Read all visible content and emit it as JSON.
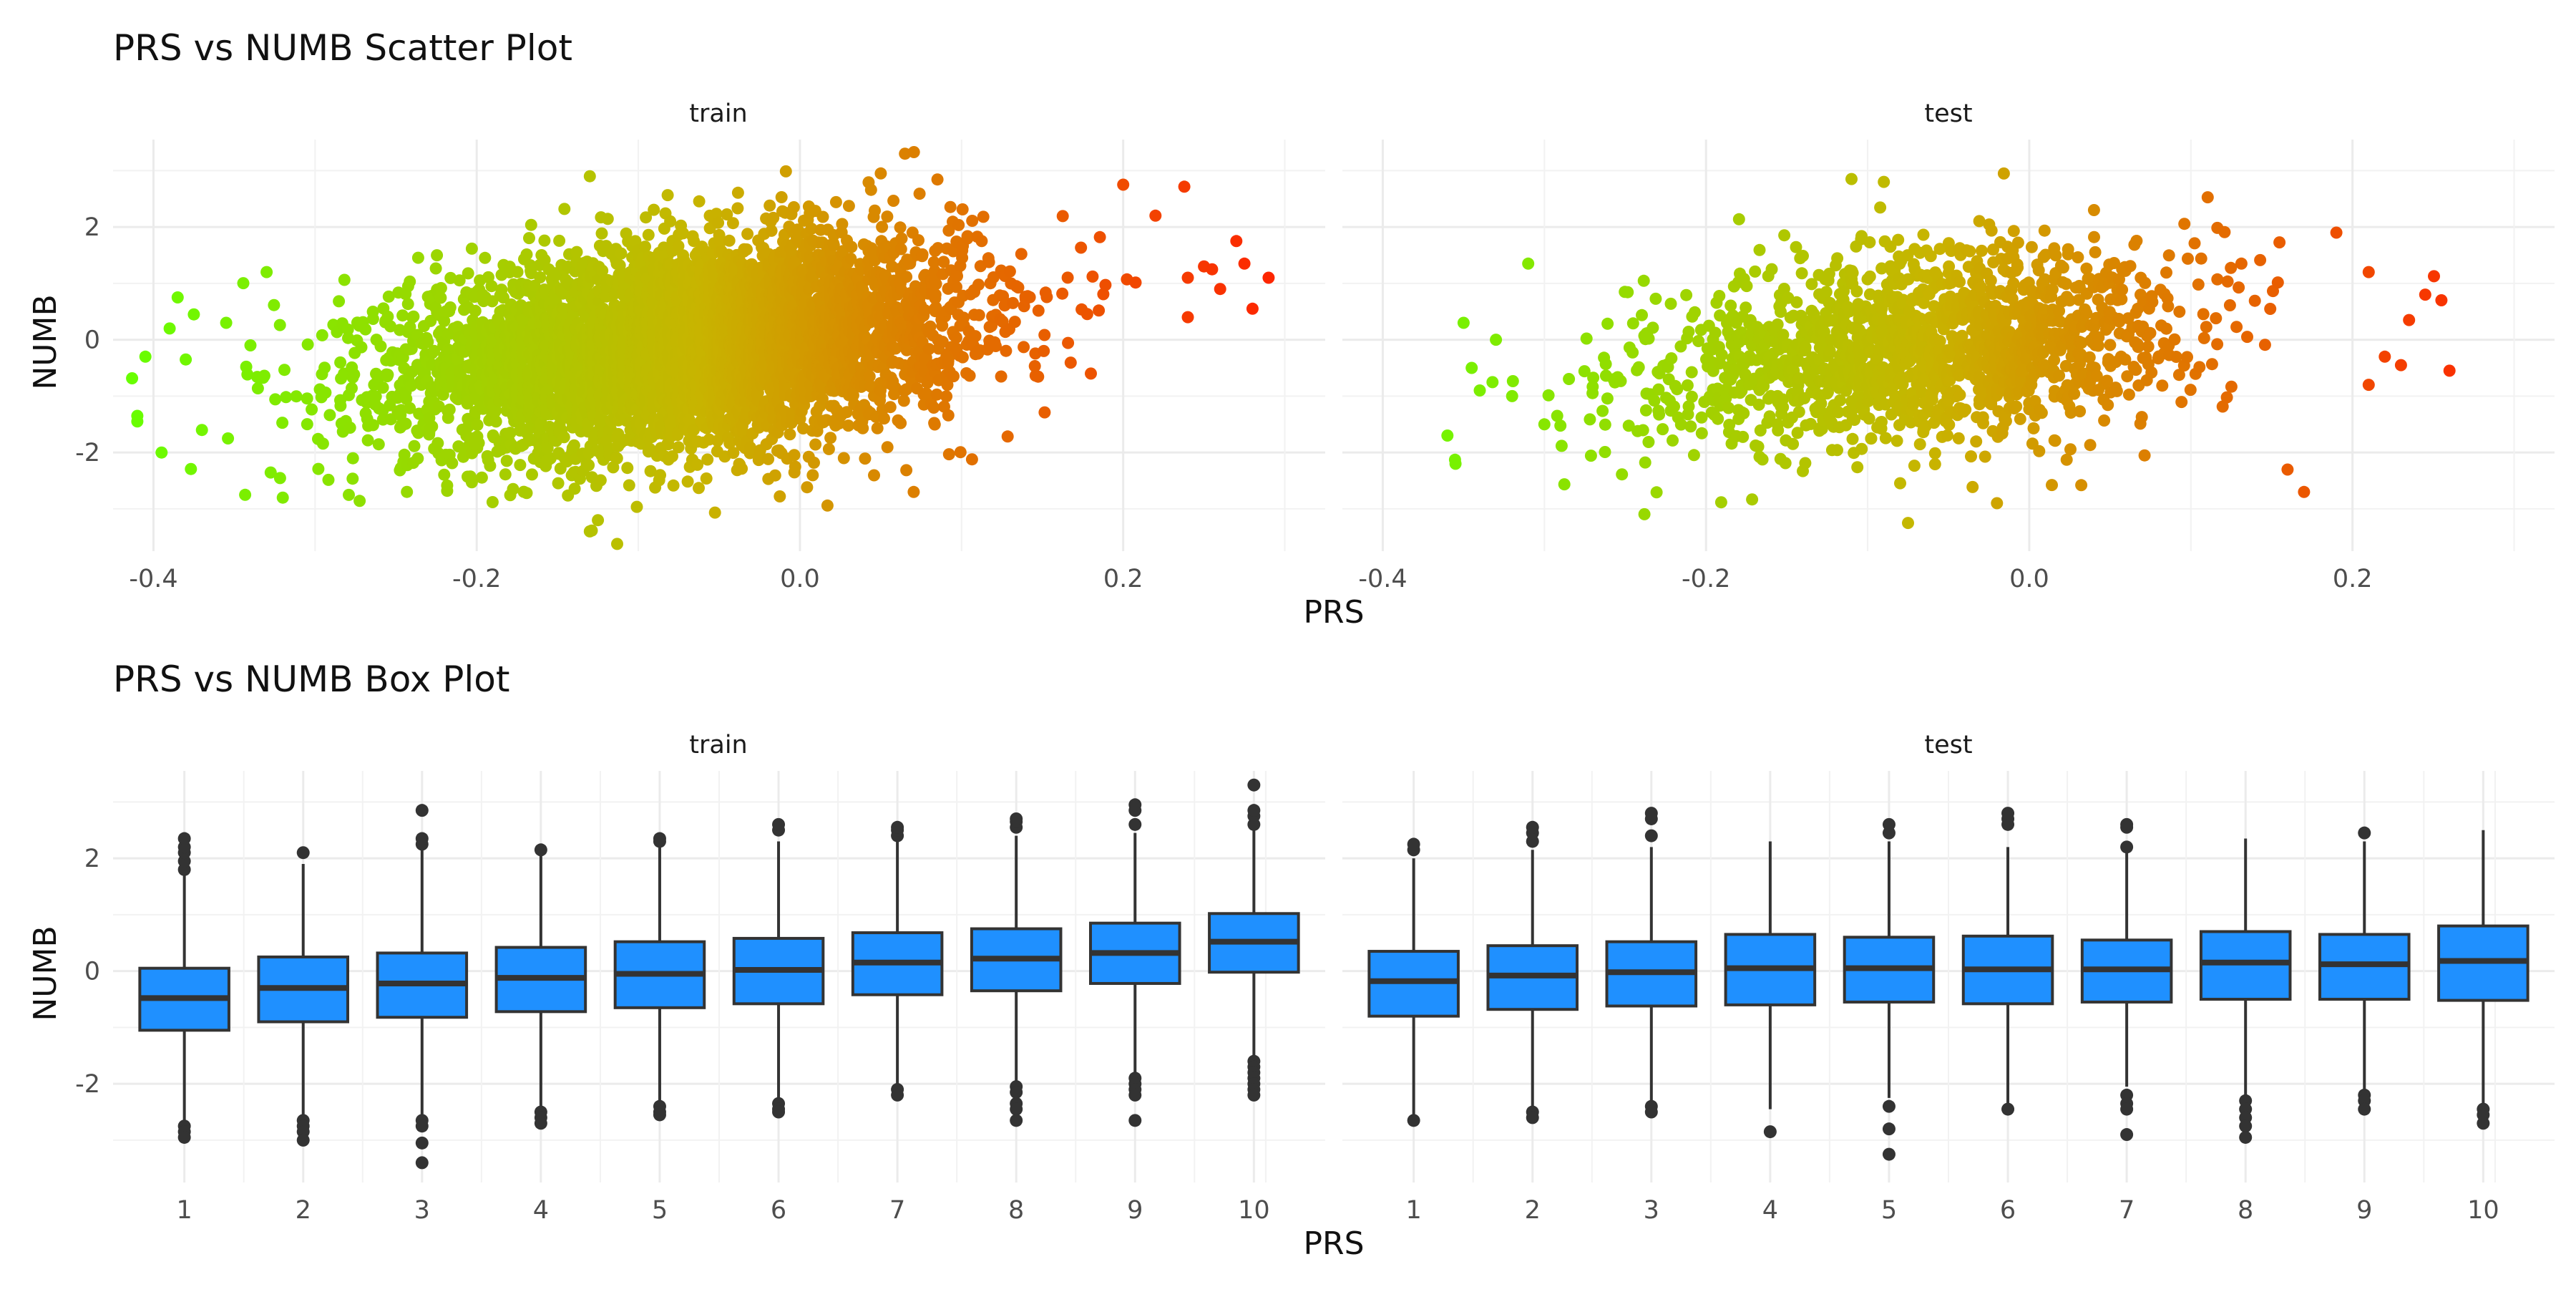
{
  "chart_data": [
    {
      "type": "scatter",
      "title": "PRS vs NUMB Scatter Plot",
      "xlabel": "PRS",
      "ylabel": "NUMB",
      "xlim": [
        -0.425,
        0.325
      ],
      "ylim": [
        -3.75,
        3.55
      ],
      "x_ticks": [
        -0.4,
        -0.2,
        0.0,
        0.2
      ],
      "y_ticks": [
        -2,
        0,
        2
      ],
      "x_tick_labels": [
        "-0.4",
        "-0.2",
        "0.0",
        "0.2"
      ],
      "y_tick_labels": [
        "-2",
        "0",
        "2"
      ],
      "grid": true,
      "legend": "none",
      "color_scale": {
        "low": "#66ff00",
        "mid": "#c8b400",
        "high": "#ff2200"
      },
      "panels": [
        {
          "name": "train",
          "x_center": -0.07,
          "x_sd": 0.085,
          "y_center": -0.1,
          "y_sd": 1.0,
          "point_count": 5200,
          "points": [
            [
              -0.41,
              -1.35
            ],
            [
              -0.41,
              -1.45
            ],
            [
              -0.405,
              -0.3
            ],
            [
              -0.395,
              -2.0
            ],
            [
              -0.39,
              0.2
            ],
            [
              -0.385,
              0.75
            ],
            [
              -0.38,
              -0.35
            ],
            [
              -0.375,
              0.45
            ],
            [
              -0.37,
              -1.6
            ],
            [
              -0.355,
              0.3
            ],
            [
              -0.34,
              -0.1
            ],
            [
              -0.33,
              1.2
            ],
            [
              -0.32,
              -2.8
            ],
            [
              0.22,
              2.2
            ],
            [
              0.24,
              1.1
            ],
            [
              0.25,
              1.3
            ],
            [
              0.255,
              1.25
            ],
            [
              0.26,
              0.9
            ],
            [
              0.27,
              1.75
            ],
            [
              0.275,
              1.35
            ],
            [
              0.28,
              0.55
            ],
            [
              0.29,
              1.1
            ],
            [
              0.24,
              0.4
            ],
            [
              0.2,
              2.75
            ],
            [
              0.18,
              -0.6
            ],
            [
              -0.13,
              -3.4
            ],
            [
              -0.125,
              -3.2
            ],
            [
              0.065,
              3.3
            ],
            [
              -0.13,
              2.9
            ],
            [
              0.05,
              2.95
            ]
          ]
        },
        {
          "name": "test",
          "x_center": -0.07,
          "x_sd": 0.085,
          "y_center": -0.15,
          "y_sd": 0.95,
          "point_count": 1600,
          "points": [
            [
              -0.36,
              -1.7
            ],
            [
              -0.355,
              -2.2
            ],
            [
              -0.35,
              0.3
            ],
            [
              -0.345,
              -0.5
            ],
            [
              -0.34,
              -0.9
            ],
            [
              -0.33,
              0.0
            ],
            [
              -0.32,
              -1.0
            ],
            [
              -0.31,
              1.35
            ],
            [
              -0.3,
              -1.5
            ],
            [
              0.21,
              1.2
            ],
            [
              0.22,
              -0.3
            ],
            [
              0.23,
              -0.45
            ],
            [
              0.235,
              0.35
            ],
            [
              0.245,
              0.8
            ],
            [
              0.255,
              0.7
            ],
            [
              0.26,
              -0.55
            ],
            [
              0.21,
              -0.8
            ],
            [
              0.17,
              -2.7
            ],
            [
              0.19,
              1.9
            ],
            [
              -0.075,
              -3.25
            ],
            [
              -0.11,
              2.85
            ],
            [
              -0.09,
              2.8
            ],
            [
              -0.02,
              -2.9
            ]
          ]
        }
      ]
    },
    {
      "type": "box",
      "title": "PRS vs NUMB Box Plot",
      "xlabel": "PRS",
      "ylabel": "NUMB",
      "categories": [
        "1",
        "2",
        "3",
        "4",
        "5",
        "6",
        "7",
        "8",
        "9",
        "10"
      ],
      "ylim": [
        -3.75,
        3.55
      ],
      "y_ticks": [
        -2,
        0,
        2
      ],
      "y_tick_labels": [
        "-2",
        "0",
        "2"
      ],
      "box_color": "#1f90ff",
      "outlier_color": "#333333",
      "grid": true,
      "panels": [
        {
          "name": "train",
          "series": [
            {
              "category": "1",
              "whisker_low": -2.7,
              "q1": -1.05,
              "median": -0.48,
              "q3": 0.05,
              "whisker_high": 1.7,
              "outliers": [
                -2.75,
                -2.85,
                -2.95,
                1.8,
                1.95,
                2.1,
                2.2,
                2.35
              ]
            },
            {
              "category": "2",
              "whisker_low": -2.55,
              "q1": -0.9,
              "median": -0.3,
              "q3": 0.25,
              "whisker_high": 1.9,
              "outliers": [
                -2.65,
                -2.75,
                -2.85,
                -3.0,
                2.1
              ]
            },
            {
              "category": "3",
              "whisker_low": -2.55,
              "q1": -0.82,
              "median": -0.22,
              "q3": 0.32,
              "whisker_high": 2.15,
              "outliers": [
                -2.65,
                -2.75,
                -3.05,
                -3.4,
                2.25,
                2.35,
                2.85
              ]
            },
            {
              "category": "4",
              "whisker_low": -2.4,
              "q1": -0.72,
              "median": -0.12,
              "q3": 0.42,
              "whisker_high": 2.05,
              "outliers": [
                -2.5,
                -2.6,
                -2.7,
                2.15
              ]
            },
            {
              "category": "5",
              "whisker_low": -2.3,
              "q1": -0.65,
              "median": -0.05,
              "q3": 0.52,
              "whisker_high": 2.2,
              "outliers": [
                -2.4,
                -2.5,
                -2.55,
                2.3,
                2.35
              ]
            },
            {
              "category": "6",
              "whisker_low": -2.25,
              "q1": -0.58,
              "median": 0.02,
              "q3": 0.58,
              "whisker_high": 2.3,
              "outliers": [
                -2.35,
                -2.45,
                -2.5,
                2.5,
                2.6
              ]
            },
            {
              "category": "7",
              "whisker_low": -2.05,
              "q1": -0.42,
              "median": 0.15,
              "q3": 0.68,
              "whisker_high": 2.3,
              "outliers": [
                -2.1,
                -2.2,
                2.4,
                2.5,
                2.55
              ]
            },
            {
              "category": "8",
              "whisker_low": -1.95,
              "q1": -0.35,
              "median": 0.22,
              "q3": 0.75,
              "whisker_high": 2.4,
              "outliers": [
                -2.05,
                -2.15,
                -2.35,
                -2.45,
                -2.65,
                2.55,
                2.65,
                2.7
              ]
            },
            {
              "category": "9",
              "whisker_low": -1.85,
              "q1": -0.22,
              "median": 0.32,
              "q3": 0.85,
              "whisker_high": 2.45,
              "outliers": [
                -1.9,
                -2.0,
                -2.1,
                -2.2,
                -2.65,
                2.6,
                2.85,
                2.95
              ]
            },
            {
              "category": "10",
              "whisker_low": -1.5,
              "q1": -0.02,
              "median": 0.52,
              "q3": 1.02,
              "whisker_high": 2.5,
              "outliers": [
                -1.6,
                -1.7,
                -1.8,
                -1.9,
                -2.0,
                -2.1,
                -2.2,
                2.6,
                2.75,
                2.85,
                3.3
              ]
            }
          ]
        },
        {
          "name": "test",
          "series": [
            {
              "category": "1",
              "whisker_low": -2.55,
              "q1": -0.8,
              "median": -0.18,
              "q3": 0.35,
              "whisker_high": 2.0,
              "outliers": [
                -2.65,
                2.15,
                2.25
              ]
            },
            {
              "category": "2",
              "whisker_low": -2.4,
              "q1": -0.68,
              "median": -0.08,
              "q3": 0.45,
              "whisker_high": 2.15,
              "outliers": [
                -2.5,
                -2.6,
                2.3,
                2.45,
                2.55
              ]
            },
            {
              "category": "3",
              "whisker_low": -2.3,
              "q1": -0.62,
              "median": -0.02,
              "q3": 0.52,
              "whisker_high": 2.2,
              "outliers": [
                -2.4,
                -2.5,
                2.4,
                2.7,
                2.8
              ]
            },
            {
              "category": "4",
              "whisker_low": -2.45,
              "q1": -0.6,
              "median": 0.05,
              "q3": 0.65,
              "whisker_high": 2.3,
              "outliers": [
                -2.85
              ]
            },
            {
              "category": "5",
              "whisker_low": -2.25,
              "q1": -0.55,
              "median": 0.05,
              "q3": 0.6,
              "whisker_high": 2.3,
              "outliers": [
                -2.4,
                -2.8,
                -3.25,
                2.45,
                2.6
              ]
            },
            {
              "category": "6",
              "whisker_low": -2.35,
              "q1": -0.58,
              "median": 0.03,
              "q3": 0.62,
              "whisker_high": 2.2,
              "outliers": [
                -2.45,
                2.6,
                2.7,
                2.8
              ]
            },
            {
              "category": "7",
              "whisker_low": -2.05,
              "q1": -0.55,
              "median": 0.03,
              "q3": 0.55,
              "whisker_high": 2.1,
              "outliers": [
                -2.2,
                -2.35,
                -2.45,
                -2.9,
                2.2,
                2.55,
                2.6
              ]
            },
            {
              "category": "8",
              "whisker_low": -2.2,
              "q1": -0.5,
              "median": 0.15,
              "q3": 0.7,
              "whisker_high": 2.35,
              "outliers": [
                -2.3,
                -2.45,
                -2.6,
                -2.75,
                -2.95
              ]
            },
            {
              "category": "9",
              "whisker_low": -2.1,
              "q1": -0.5,
              "median": 0.12,
              "q3": 0.65,
              "whisker_high": 2.3,
              "outliers": [
                -2.2,
                -2.3,
                -2.45,
                2.45
              ]
            },
            {
              "category": "10",
              "whisker_low": -2.35,
              "q1": -0.52,
              "median": 0.18,
              "q3": 0.8,
              "whisker_high": 2.5,
              "outliers": [
                -2.45,
                -2.55,
                -2.7
              ]
            }
          ]
        }
      ]
    }
  ]
}
